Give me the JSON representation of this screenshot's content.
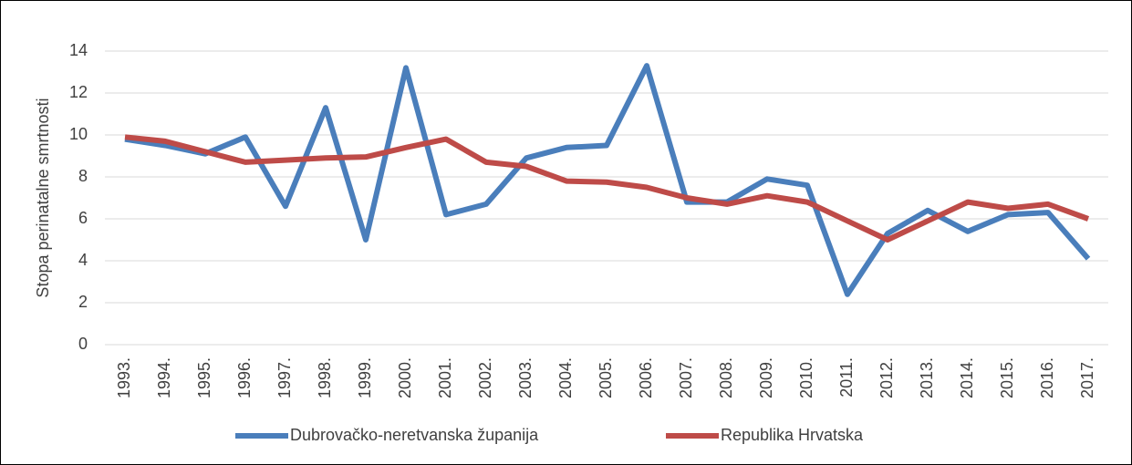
{
  "chart_data": {
    "type": "line",
    "y_label": "Stopa perinatalne smrtnosti",
    "categories": [
      "1993.",
      "1994.",
      "1995.",
      "1996.",
      "1997.",
      "1998.",
      "1999.",
      "2000.",
      "2001.",
      "2002.",
      "2003.",
      "2004.",
      "2005.",
      "2006.",
      "2007.",
      "2008.",
      "2009.",
      "2010.",
      "2011.",
      "2012.",
      "2013.",
      "2014.",
      "2015.",
      "2016.",
      "2017."
    ],
    "series": [
      {
        "name": "Dubrovačko-neretvanska županija",
        "color": "#4a7ebb",
        "values": [
          9.8,
          9.5,
          9.1,
          9.9,
          6.6,
          11.3,
          5.0,
          13.2,
          6.2,
          6.7,
          8.9,
          9.4,
          9.5,
          13.3,
          6.8,
          6.8,
          7.9,
          7.6,
          2.4,
          5.3,
          6.4,
          5.4,
          6.2,
          6.3,
          4.1
        ]
      },
      {
        "name": "Republika Hrvatska",
        "color": "#be4b48",
        "values": [
          9.9,
          9.7,
          9.2,
          8.7,
          8.8,
          8.9,
          8.95,
          9.4,
          9.8,
          8.7,
          8.5,
          7.8,
          7.75,
          7.5,
          7.0,
          6.7,
          7.1,
          6.8,
          5.9,
          5.0,
          5.9,
          6.8,
          6.5,
          6.7,
          6.0
        ]
      }
    ],
    "ylim": [
      0,
      14
    ],
    "yticks": [
      0,
      2,
      4,
      6,
      8,
      10,
      12,
      14
    ],
    "grid": true,
    "legend": "bottom"
  }
}
